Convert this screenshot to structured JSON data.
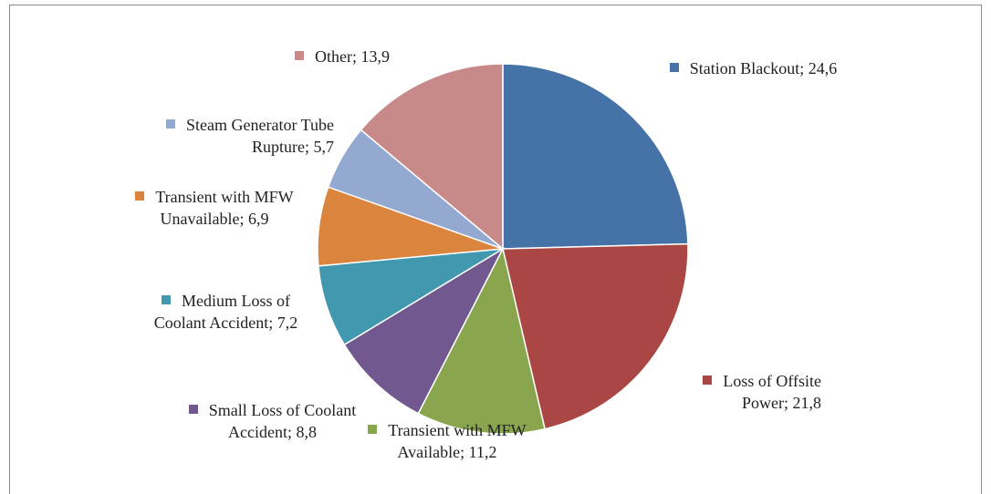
{
  "chart_data": {
    "type": "pie",
    "categories": [
      "Station Blackout",
      "Loss of Offsite Power",
      "Transient with MFW Available",
      "Small Loss of Coolant Accident",
      "Medium Loss of Coolant Accident",
      "Transient with MFW Unavailable",
      "Steam Generator Tube Rupture",
      "Other"
    ],
    "values": [
      24.6,
      21.8,
      11.2,
      8.8,
      7.2,
      6.9,
      5.7,
      13.9
    ],
    "value_labels": [
      "24,6",
      "21,8",
      "11,2",
      "8,8",
      "7,2",
      "6,9",
      "5,7",
      "13,9"
    ],
    "label_separator": ";",
    "colors": [
      "#4572a7",
      "#aa4643",
      "#89a54e",
      "#71588f",
      "#4198af",
      "#db843d",
      "#93a9cf",
      "#c88a89"
    ]
  }
}
